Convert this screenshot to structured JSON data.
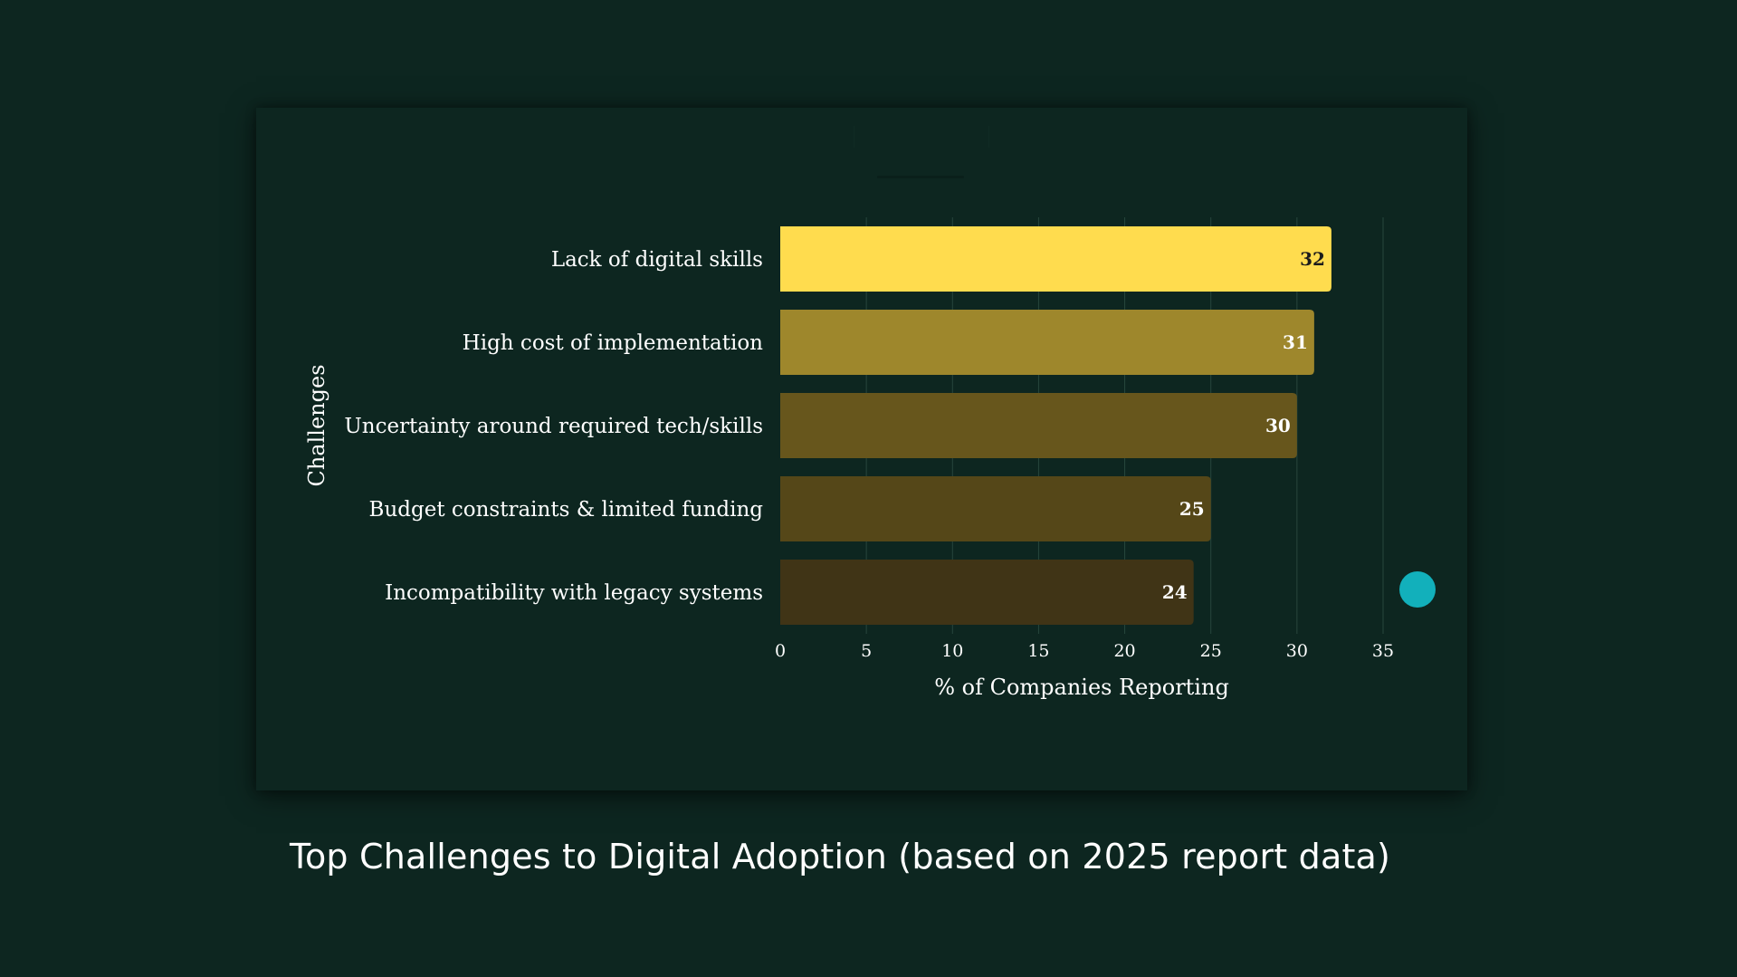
{
  "caption": "Top Challenges to Digital Adoption (based on 2025 report data)",
  "chart_data": {
    "type": "bar",
    "orientation": "horizontal",
    "categories": [
      "Lack of digital skills",
      "High cost of implementation",
      "Uncertainty around required tech/skills",
      "Budget constraints & limited funding",
      "Incompatibility with legacy systems"
    ],
    "values": [
      32,
      31,
      30,
      25,
      24
    ],
    "data_labels": [
      "32",
      "31",
      "30",
      "25",
      "24"
    ],
    "bar_colors": [
      "#ffdc4e",
      "#9e872c",
      "#67561c",
      "#554718",
      "#403416"
    ],
    "xlabel": "% of Companies Reporting",
    "ylabel": "Challenges",
    "xlim": [
      0,
      35
    ],
    "xticks": [
      "0",
      "5",
      "10",
      "15",
      "20",
      "25",
      "30",
      "35"
    ],
    "grid": "vertical",
    "legend": "none"
  },
  "colors": {
    "background": "#0d2620",
    "text": "#ffffff",
    "gridline": "#27463d",
    "marker": "#12b0bb"
  }
}
